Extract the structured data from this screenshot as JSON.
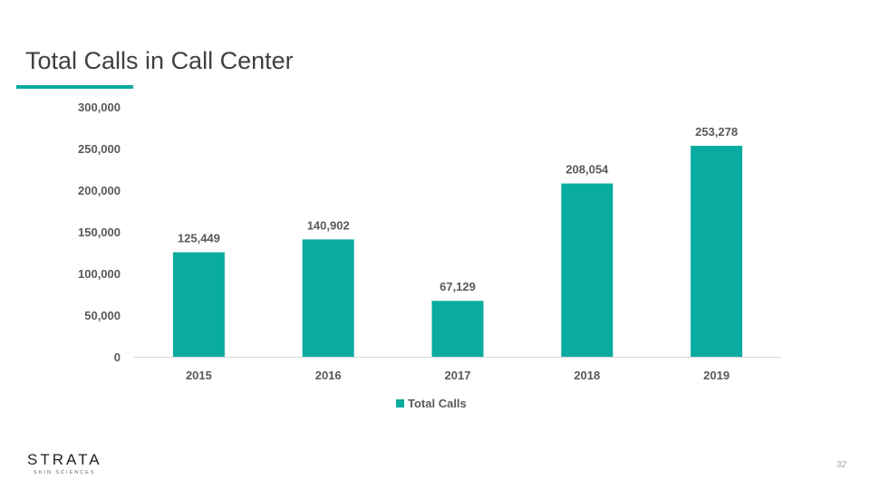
{
  "slide": {
    "title": "Total Calls in Call Center",
    "page_number": "32",
    "logo": {
      "word": "STRATA",
      "sub": "SKIN SCIENCES"
    }
  },
  "colors": {
    "accent": "#0aaba1",
    "text": "#595959",
    "axis": "#d9d9d9"
  },
  "chart_data": {
    "type": "bar",
    "title": "",
    "xlabel": "",
    "ylabel": "",
    "categories": [
      "2015",
      "2016",
      "2017",
      "2018",
      "2019"
    ],
    "series": [
      {
        "name": "Total Calls",
        "values": [
          125449,
          140902,
          67129,
          208054,
          253278
        ]
      }
    ],
    "data_labels": [
      "125,449",
      "140,902",
      "67,129",
      "208,054",
      "253,278"
    ],
    "y_ticks": [
      "0",
      "50,000",
      "100,000",
      "150,000",
      "200,000",
      "250,000",
      "300,000"
    ],
    "ylim": [
      0,
      300000
    ],
    "grid": false,
    "legend": "bottom"
  }
}
